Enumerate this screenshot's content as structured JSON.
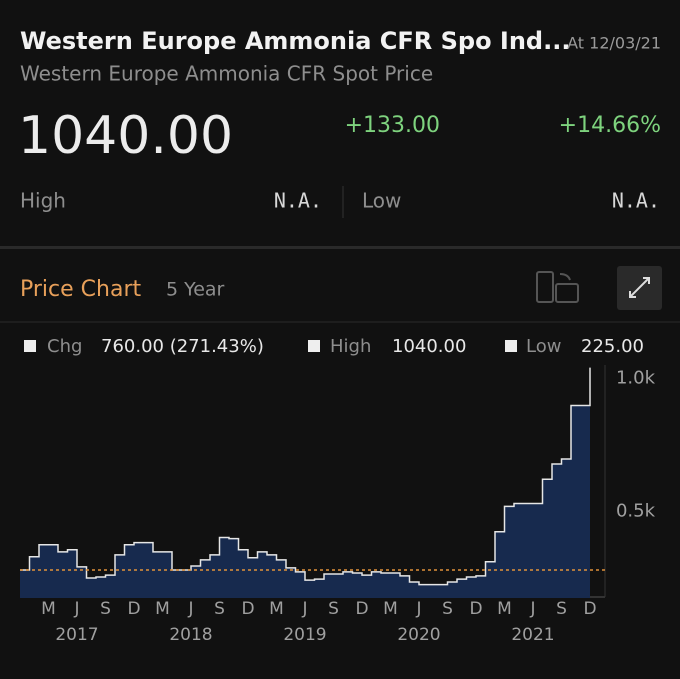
{
  "header": {
    "title": "Western Europe Ammonia CFR Spo Ind...",
    "timestamp": "At 12/03/21",
    "subtitle": "Western Europe Ammonia CFR Spot Price",
    "price": "1040.00",
    "change": "+133.00",
    "change_pct": "+14.66%",
    "high_label": "High",
    "high_value": "N.A.",
    "low_label": "Low",
    "low_value": "N.A."
  },
  "section": {
    "title": "Price Chart",
    "period": "5 Year"
  },
  "legend": [
    {
      "label": "Chg",
      "value": "760.00 (271.43%)"
    },
    {
      "label": "High",
      "value": "1040.00"
    },
    {
      "label": "Low",
      "value": "225.00"
    }
  ],
  "chart_data": {
    "type": "area",
    "x": [
      "2016-12",
      "2017-01",
      "2017-02",
      "2017-03",
      "2017-04",
      "2017-05",
      "2017-06",
      "2017-07",
      "2017-08",
      "2017-09",
      "2017-10",
      "2017-11",
      "2017-12",
      "2018-01",
      "2018-02",
      "2018-03",
      "2018-04",
      "2018-05",
      "2018-06",
      "2018-07",
      "2018-08",
      "2018-09",
      "2018-10",
      "2018-11",
      "2018-12",
      "2019-01",
      "2019-02",
      "2019-03",
      "2019-04",
      "2019-05",
      "2019-06",
      "2019-07",
      "2019-08",
      "2019-09",
      "2019-10",
      "2019-11",
      "2019-12",
      "2020-01",
      "2020-02",
      "2020-03",
      "2020-04",
      "2020-05",
      "2020-06",
      "2020-07",
      "2020-08",
      "2020-09",
      "2020-10",
      "2020-11",
      "2020-12",
      "2021-01",
      "2021-02",
      "2021-03",
      "2021-04",
      "2021-05",
      "2021-06",
      "2021-07",
      "2021-08",
      "2021-09",
      "2021-10",
      "2021-11",
      "2021-12"
    ],
    "values": [
      280,
      330,
      375,
      375,
      348,
      356,
      292,
      250,
      254,
      261,
      337,
      375,
      383,
      383,
      348,
      348,
      280,
      280,
      295,
      318,
      337,
      402,
      398,
      356,
      326,
      348,
      337,
      318,
      288,
      273,
      242,
      246,
      265,
      265,
      273,
      269,
      261,
      273,
      269,
      269,
      258,
      235,
      225,
      225,
      225,
      235,
      246,
      254,
      258,
      311,
      424,
      519,
      530,
      530,
      530,
      621,
      678,
      697,
      898,
      898,
      1040
    ],
    "color": "#172a4e",
    "line_color": "#e6e6e6",
    "reference_line": 280,
    "reference_color": "#e0913a",
    "xlim": [
      "2016-12",
      "2021-12"
    ],
    "xticks": [
      {
        "value": "2017-03",
        "label": "M"
      },
      {
        "value": "2017-06",
        "label": "J"
      },
      {
        "value": "2017-09",
        "label": "S"
      },
      {
        "value": "2017-12",
        "label": "D"
      },
      {
        "value": "2018-03",
        "label": "M"
      },
      {
        "value": "2018-06",
        "label": "J"
      },
      {
        "value": "2018-09",
        "label": "S"
      },
      {
        "value": "2018-12",
        "label": "D"
      },
      {
        "value": "2019-03",
        "label": "M"
      },
      {
        "value": "2019-06",
        "label": "J"
      },
      {
        "value": "2019-09",
        "label": "S"
      },
      {
        "value": "2019-12",
        "label": "D"
      },
      {
        "value": "2020-03",
        "label": "M"
      },
      {
        "value": "2020-06",
        "label": "J"
      },
      {
        "value": "2020-09",
        "label": "S"
      },
      {
        "value": "2020-12",
        "label": "D"
      },
      {
        "value": "2021-03",
        "label": "M"
      },
      {
        "value": "2021-06",
        "label": "J"
      },
      {
        "value": "2021-09",
        "label": "S"
      },
      {
        "value": "2021-12",
        "label": "D"
      }
    ],
    "year_labels": [
      {
        "value": "2017-06",
        "label": "2017"
      },
      {
        "value": "2018-06",
        "label": "2018"
      },
      {
        "value": "2019-06",
        "label": "2019"
      },
      {
        "value": "2020-06",
        "label": "2020"
      },
      {
        "value": "2021-06",
        "label": "2021"
      }
    ],
    "ylim": [
      175,
      1050
    ],
    "yticks": [
      {
        "value": 1000,
        "label": "1.0k"
      },
      {
        "value": 500,
        "label": "0.5k"
      }
    ]
  }
}
